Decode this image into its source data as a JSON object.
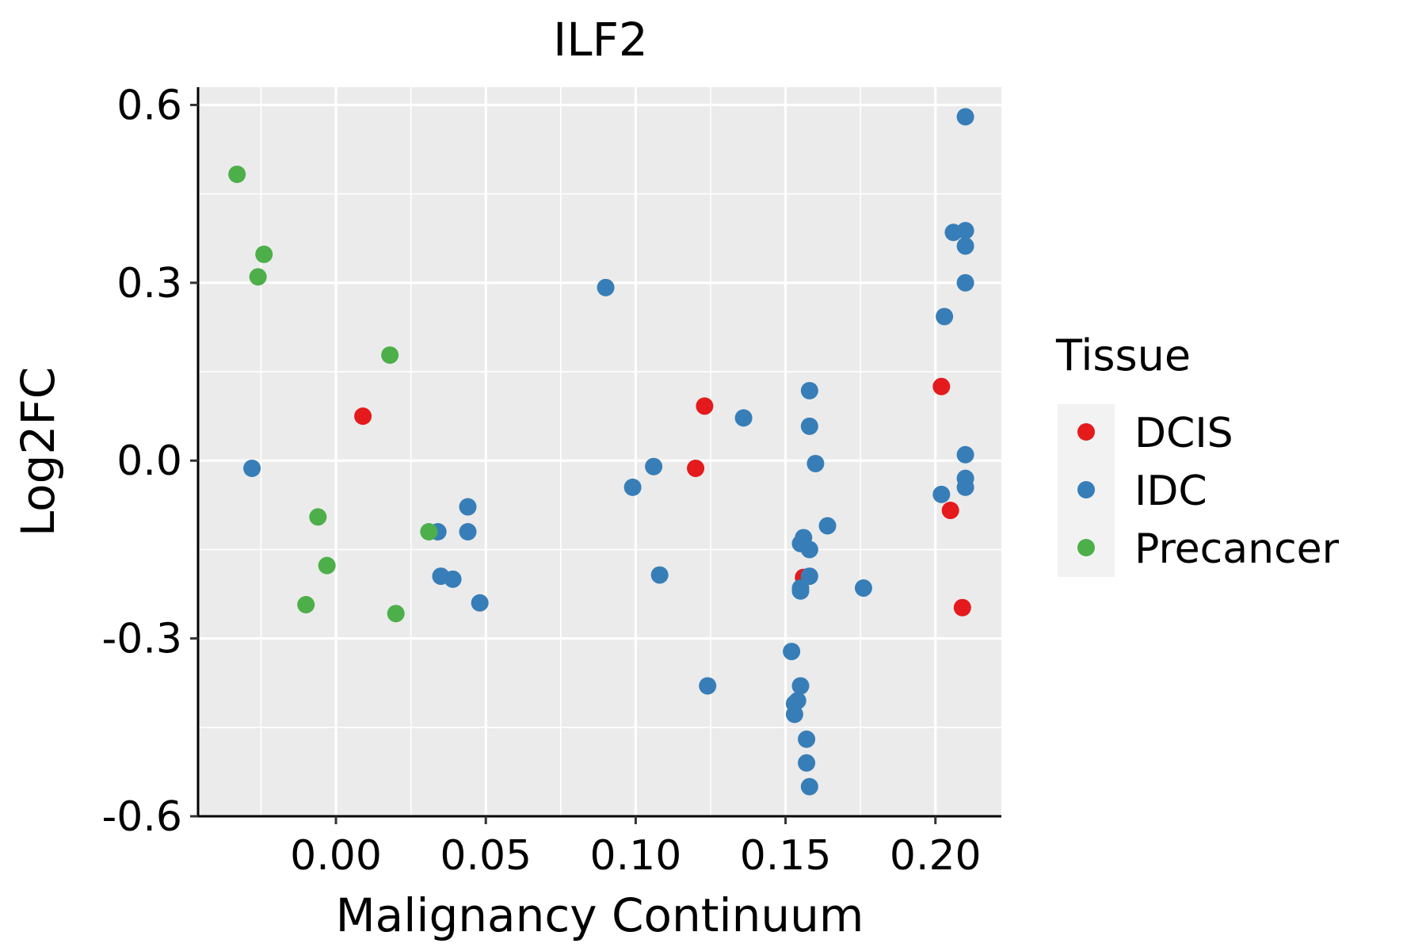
{
  "chart_data": {
    "type": "scatter",
    "title": "ILF2",
    "xlabel": "Malignancy Continuum",
    "ylabel": "Log2FC",
    "xlim": [
      -0.046,
      0.222
    ],
    "ylim": [
      -0.6,
      0.63
    ],
    "x_ticks": [
      0.0,
      0.05,
      0.1,
      0.15,
      0.2
    ],
    "x_tick_labels": [
      "0.00",
      "0.05",
      "0.10",
      "0.15",
      "0.20"
    ],
    "y_ticks": [
      -0.6,
      -0.3,
      0.0,
      0.3,
      0.6
    ],
    "y_tick_labels": [
      "-0.6",
      "-0.3",
      "0.0",
      "0.3",
      "0.6"
    ],
    "grid": true,
    "legend": {
      "title": "Tissue",
      "position": "right"
    },
    "series": [
      {
        "name": "DCIS",
        "color": "#E41A1C",
        "points": [
          [
            0.009,
            0.075
          ],
          [
            0.123,
            0.092
          ],
          [
            0.12,
            -0.013
          ],
          [
            0.156,
            -0.197
          ],
          [
            0.202,
            0.125
          ],
          [
            0.205,
            -0.084
          ],
          [
            0.209,
            -0.248
          ]
        ]
      },
      {
        "name": "IDC",
        "color": "#377EB8",
        "points": [
          [
            -0.028,
            -0.013
          ],
          [
            0.034,
            -0.12
          ],
          [
            0.035,
            -0.195
          ],
          [
            0.039,
            -0.2
          ],
          [
            0.044,
            -0.078
          ],
          [
            0.044,
            -0.12
          ],
          [
            0.048,
            -0.24
          ],
          [
            0.09,
            0.292
          ],
          [
            0.099,
            -0.045
          ],
          [
            0.106,
            -0.01
          ],
          [
            0.108,
            -0.193
          ],
          [
            0.124,
            -0.38
          ],
          [
            0.136,
            0.072
          ],
          [
            0.152,
            -0.322
          ],
          [
            0.153,
            -0.41
          ],
          [
            0.153,
            -0.428
          ],
          [
            0.154,
            -0.405
          ],
          [
            0.155,
            -0.38
          ],
          [
            0.155,
            -0.215
          ],
          [
            0.155,
            -0.22
          ],
          [
            0.155,
            -0.14
          ],
          [
            0.156,
            -0.13
          ],
          [
            0.157,
            -0.47
          ],
          [
            0.157,
            -0.51
          ],
          [
            0.158,
            -0.195
          ],
          [
            0.158,
            -0.55
          ],
          [
            0.158,
            -0.15
          ],
          [
            0.158,
            0.118
          ],
          [
            0.158,
            0.058
          ],
          [
            0.16,
            -0.005
          ],
          [
            0.164,
            -0.11
          ],
          [
            0.176,
            -0.215
          ],
          [
            0.202,
            -0.057
          ],
          [
            0.203,
            0.243
          ],
          [
            0.206,
            0.385
          ],
          [
            0.21,
            0.388
          ],
          [
            0.21,
            0.362
          ],
          [
            0.21,
            0.3
          ],
          [
            0.21,
            0.58
          ],
          [
            0.21,
            0.01
          ],
          [
            0.21,
            -0.03
          ],
          [
            0.21,
            -0.045
          ]
        ]
      },
      {
        "name": "Precancer",
        "color": "#4DAF4A",
        "points": [
          [
            -0.033,
            0.483
          ],
          [
            -0.026,
            0.31
          ],
          [
            -0.024,
            0.348
          ],
          [
            -0.01,
            -0.243
          ],
          [
            -0.006,
            -0.095
          ],
          [
            -0.003,
            -0.177
          ],
          [
            0.018,
            0.178
          ],
          [
            0.02,
            -0.258
          ],
          [
            0.031,
            -0.12
          ]
        ]
      }
    ]
  }
}
